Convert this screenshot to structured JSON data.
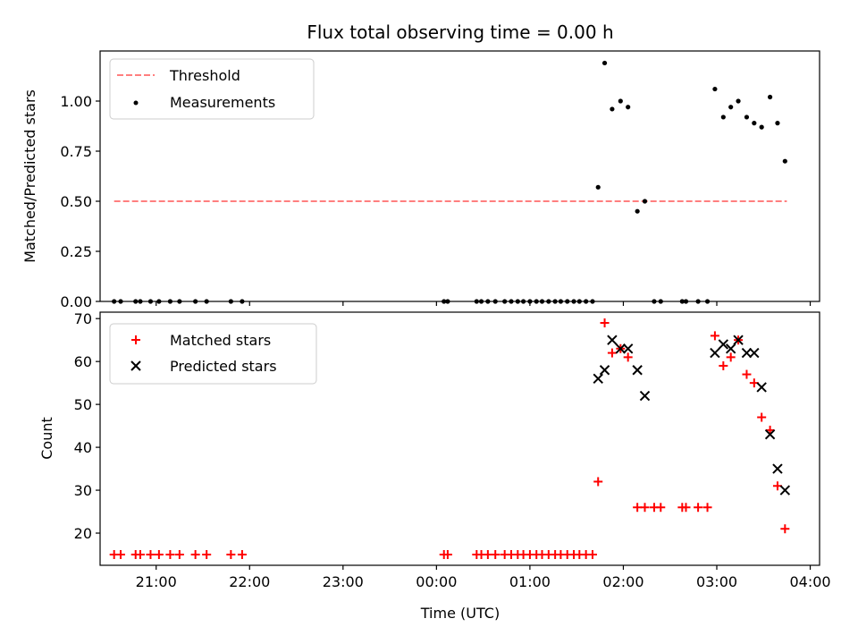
{
  "chart_data": [
    {
      "type": "scatter",
      "title": "Flux total observing time = 0.00 h",
      "ylabel": "Matched/Predicted stars",
      "xlabel": "",
      "xlim": [
        -3.6,
        4.1
      ],
      "ylim": [
        0.0,
        1.25
      ],
      "grid": false,
      "legend_position": "top-left",
      "x_tick_labels": [
        "21:00",
        "22:00",
        "23:00",
        "00:00",
        "01:00",
        "02:00",
        "03:00",
        "04:00"
      ],
      "y_ticks": [
        0.0,
        0.25,
        0.5,
        0.75,
        1.0
      ],
      "y_tick_labels": [
        "0.00",
        "0.25",
        "0.50",
        "0.75",
        "1.00"
      ],
      "colors": {
        "threshold": "#ff7f7f",
        "measurements": "#000000"
      },
      "legend": {
        "threshold": "Threshold",
        "measurements": "Measurements"
      },
      "threshold": {
        "name": "Threshold",
        "y": 0.5,
        "x_start": -3.45,
        "x_end": 3.75
      },
      "series": [
        {
          "name": "Measurements",
          "x": [
            -3.45,
            -3.38,
            -3.22,
            -3.17,
            -3.06,
            -2.97,
            -2.85,
            -2.75,
            -2.58,
            -2.46,
            -2.2,
            -2.08,
            0.08,
            0.12,
            0.43,
            0.48,
            0.55,
            0.63,
            0.73,
            0.8,
            0.87,
            0.93,
            1.0,
            1.07,
            1.13,
            1.2,
            1.27,
            1.33,
            1.4,
            1.47,
            1.53,
            1.6,
            1.67,
            1.73,
            1.8,
            1.88,
            1.97,
            2.05,
            2.15,
            2.23,
            2.33,
            2.4,
            2.63,
            2.67,
            2.8,
            2.9,
            2.98,
            3.07,
            3.15,
            3.23,
            3.32,
            3.4,
            3.48,
            3.57,
            3.65,
            3.73
          ],
          "values": [
            0,
            0,
            0,
            0,
            0,
            0,
            0,
            0,
            0,
            0,
            0,
            0,
            0,
            0,
            0,
            0,
            0,
            0,
            0,
            0,
            0,
            0,
            0,
            0,
            0,
            0,
            0,
            0,
            0,
            0,
            0,
            0,
            0,
            0.57,
            1.19,
            0.96,
            1.0,
            0.97,
            0.45,
            0.5,
            0,
            0,
            0,
            0,
            0,
            0,
            1.06,
            0.92,
            0.97,
            1.0,
            0.92,
            0.89,
            0.87,
            1.02,
            0.89,
            0.7
          ]
        }
      ]
    },
    {
      "type": "scatter",
      "title": "",
      "ylabel": "Count",
      "xlabel": "Time (UTC)",
      "xlim": [
        -3.6,
        4.1
      ],
      "ylim": [
        12.5,
        71.5
      ],
      "grid": false,
      "legend_position": "top-left",
      "x_tick_labels": [
        "21:00",
        "22:00",
        "23:00",
        "00:00",
        "01:00",
        "02:00",
        "03:00",
        "04:00"
      ],
      "y_ticks": [
        20,
        30,
        40,
        50,
        60,
        70
      ],
      "y_tick_labels": [
        "20",
        "30",
        "40",
        "50",
        "60",
        "70"
      ],
      "colors": {
        "matched": "#ff0000",
        "predicted": "#000000"
      },
      "legend": {
        "matched": "Matched stars",
        "predicted": "Predicted stars"
      },
      "series": [
        {
          "name": "Matched stars",
          "x": [
            -3.45,
            -3.38,
            -3.22,
            -3.17,
            -3.06,
            -2.97,
            -2.85,
            -2.75,
            -2.58,
            -2.46,
            -2.2,
            -2.08,
            0.08,
            0.12,
            0.43,
            0.48,
            0.55,
            0.63,
            0.73,
            0.8,
            0.87,
            0.93,
            1.0,
            1.07,
            1.13,
            1.2,
            1.27,
            1.33,
            1.4,
            1.47,
            1.53,
            1.6,
            1.67,
            1.73,
            1.8,
            1.88,
            1.97,
            2.05,
            2.15,
            2.23,
            2.33,
            2.4,
            2.63,
            2.67,
            2.8,
            2.9,
            2.98,
            3.07,
            3.15,
            3.23,
            3.32,
            3.4,
            3.48,
            3.57,
            3.65,
            3.73
          ],
          "values": [
            15,
            15,
            15,
            15,
            15,
            15,
            15,
            15,
            15,
            15,
            15,
            15,
            15,
            15,
            15,
            15,
            15,
            15,
            15,
            15,
            15,
            15,
            15,
            15,
            15,
            15,
            15,
            15,
            15,
            15,
            15,
            15,
            15,
            32,
            69,
            62,
            63,
            61,
            26,
            26,
            26,
            26,
            26,
            26,
            26,
            26,
            66,
            59,
            61,
            65,
            57,
            55,
            47,
            44,
            31,
            21
          ]
        },
        {
          "name": "Predicted stars",
          "x": [
            1.73,
            1.8,
            1.88,
            1.97,
            2.05,
            2.15,
            2.23,
            2.98,
            3.07,
            3.15,
            3.23,
            3.32,
            3.4,
            3.48,
            3.57,
            3.65,
            3.73
          ],
          "values": [
            56,
            58,
            65,
            63,
            63,
            58,
            52,
            62,
            64,
            63,
            65,
            62,
            62,
            54,
            43,
            35,
            30
          ]
        }
      ]
    }
  ]
}
